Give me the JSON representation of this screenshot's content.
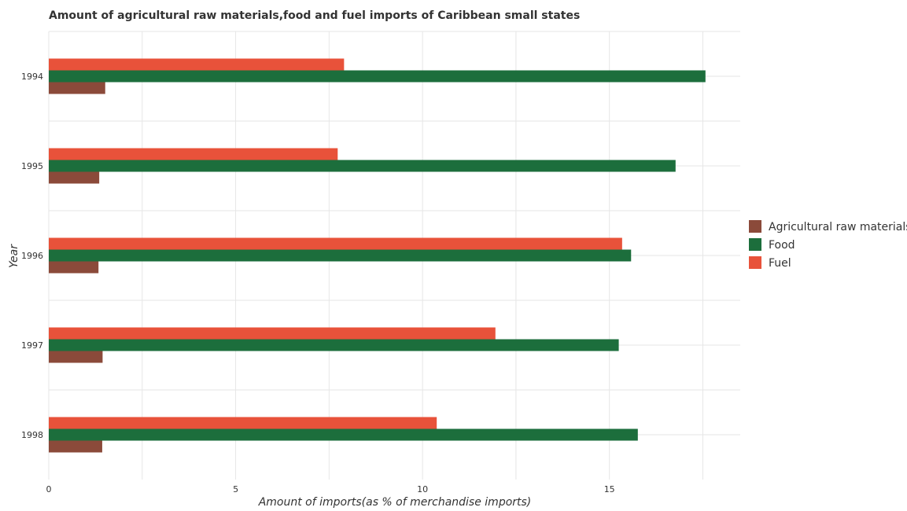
{
  "chart_data": {
    "type": "bar",
    "orientation": "horizontal",
    "title": "Amount of agricultural raw materials,food and fuel imports of Caribbean small states",
    "xlabel": "Amount of imports(as % of merchandise imports)",
    "ylabel": "Year",
    "categories": [
      "1994",
      "1995",
      "1996",
      "1997",
      "1998"
    ],
    "xlim": [
      0,
      18.5
    ],
    "xticks": [
      0,
      5,
      10,
      15
    ],
    "grid": true,
    "legend_position": "right",
    "series": [
      {
        "name": "Agricultural raw materials",
        "color": "#8b4a3a",
        "values": [
          1.51,
          1.35,
          1.33,
          1.44,
          1.43
        ]
      },
      {
        "name": "Food",
        "color": "#1c6e3c",
        "values": [
          17.57,
          16.77,
          15.58,
          15.25,
          15.76
        ]
      },
      {
        "name": "Fuel",
        "color": "#e8523a",
        "values": [
          7.9,
          7.73,
          15.34,
          11.95,
          10.38
        ]
      }
    ]
  }
}
